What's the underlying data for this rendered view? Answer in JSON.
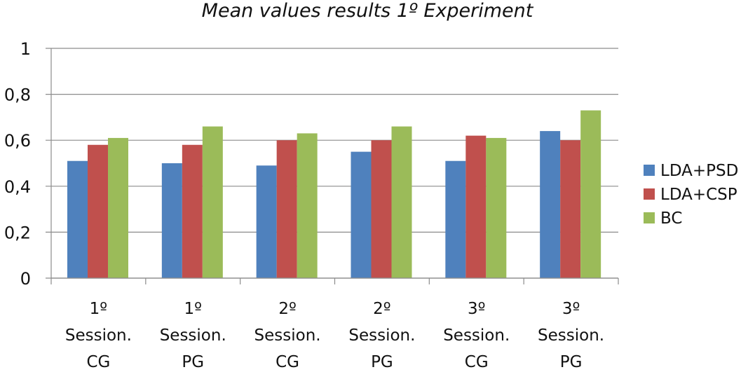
{
  "chart_data": {
    "type": "bar",
    "title": "Mean values results 1º Experiment",
    "categories": [
      [
        "1º",
        "Session.",
        "CG"
      ],
      [
        "1º",
        "Session.",
        "PG"
      ],
      [
        "2º",
        "Session.",
        "CG"
      ],
      [
        "2º",
        "Session.",
        "PG"
      ],
      [
        "3º",
        "Session.",
        "CG"
      ],
      [
        "3º",
        "Session.",
        "PG"
      ]
    ],
    "series": [
      {
        "name": "LDA+PSD",
        "color": "#4f81bd",
        "values": [
          0.51,
          0.5,
          0.49,
          0.55,
          0.51,
          0.64
        ]
      },
      {
        "name": "LDA+CSP",
        "color": "#c0504d",
        "values": [
          0.58,
          0.58,
          0.6,
          0.6,
          0.62,
          0.6
        ]
      },
      {
        "name": "BC",
        "color": "#9bbb59",
        "values": [
          0.61,
          0.66,
          0.63,
          0.66,
          0.61,
          0.73
        ]
      }
    ],
    "ylim": [
      0,
      1
    ],
    "yticks": [
      "0",
      "0,2",
      "0,4",
      "0,6",
      "0,8",
      "1"
    ],
    "ytick_values": [
      0,
      0.2,
      0.4,
      0.6,
      0.8,
      1
    ],
    "grid": true,
    "legend_position": "right"
  }
}
